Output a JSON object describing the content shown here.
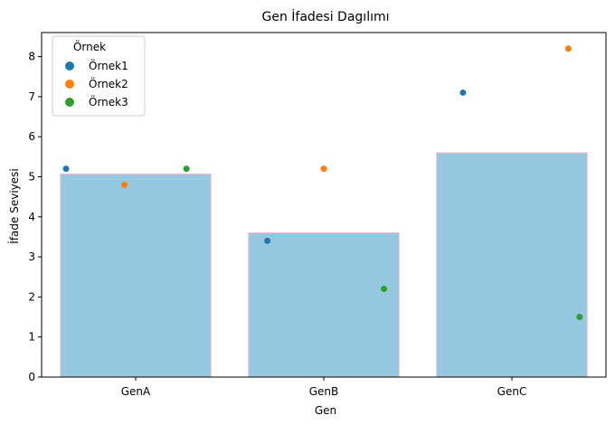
{
  "chart_data": {
    "type": "bar",
    "title": "Gen İfadesi Dagılımı",
    "xlabel": "Gen",
    "ylabel": "İfade Seviyesi",
    "categories": [
      "GenA",
      "GenB",
      "GenC"
    ],
    "bar_values": [
      5.07,
      3.6,
      5.6
    ],
    "bar_color": "#95c8df",
    "bar_edge_color": "#f4b8cf",
    "ylim": [
      0,
      8.6
    ],
    "yticks": [
      0,
      1,
      2,
      3,
      4,
      5,
      6,
      7,
      8
    ],
    "grid": false,
    "legend": {
      "title": "Örnek",
      "position": "top-left"
    },
    "series": [
      {
        "name": "Örnek1",
        "color": "#1f77b4",
        "values": [
          5.2,
          3.4,
          7.1
        ]
      },
      {
        "name": "Örnek2",
        "color": "#ff7f0e",
        "values": [
          4.8,
          5.2,
          8.2
        ]
      },
      {
        "name": "Örnek3",
        "color": "#2ca02c",
        "values": [
          5.2,
          2.2,
          1.5
        ]
      }
    ]
  }
}
